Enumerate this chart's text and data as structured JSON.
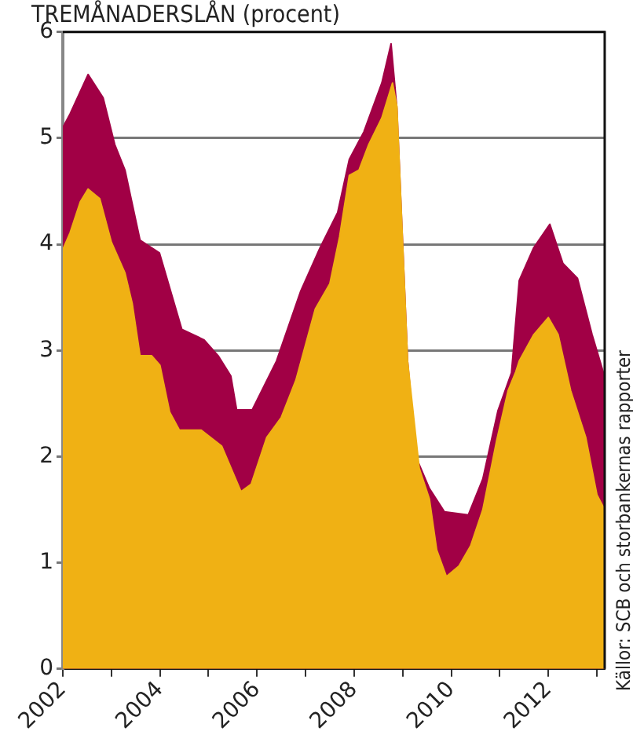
{
  "chart_data": {
    "type": "area",
    "title": "TREMÅNADERSLÅN (procent)",
    "annotations": [
      "Källor: SCB och storbankernas rapporter"
    ],
    "xlim": [
      2002,
      2013.16
    ],
    "xticks": [
      2002,
      {
        "value": 2003,
        "label": null
      },
      2004,
      {
        "value": 2005,
        "label": null
      },
      2006,
      {
        "value": 2007,
        "label": null
      },
      2008,
      {
        "value": 2009,
        "label": null
      },
      2010,
      {
        "value": 2011,
        "label": null
      },
      2012,
      {
        "value": 2013,
        "label": null
      }
    ],
    "ylim": [
      0,
      6
    ],
    "yticks": [
      0,
      1,
      2,
      3,
      4,
      5,
      6
    ],
    "grid": "y",
    "legend": false,
    "series": [
      {
        "color": "#a10045",
        "x": [
          2002,
          2002.15,
          2002.52,
          2002.83,
          2003.07,
          2003.28,
          2003.59,
          2003.99,
          2004.45,
          2004.91,
          2005.2,
          2005.46,
          2005.58,
          2005.9,
          2006.4,
          2006.9,
          2007.3,
          2007.66,
          2007.9,
          2008.2,
          2008.57,
          2008.76,
          2008.88,
          2009.1,
          2009.28,
          2009.55,
          2009.86,
          2010.35,
          2010.65,
          2010.96,
          2011.24,
          2011.4,
          2011.7,
          2012.03,
          2012.3,
          2012.6,
          2012.9,
          2013.16
        ],
        "values": [
          5.1,
          5.23,
          5.6,
          5.38,
          4.94,
          4.7,
          4.04,
          3.92,
          3.2,
          3.1,
          2.95,
          2.76,
          2.44,
          2.44,
          2.9,
          3.56,
          3.97,
          4.3,
          4.8,
          5.06,
          5.52,
          5.89,
          5.28,
          2.9,
          1.99,
          1.7,
          1.48,
          1.45,
          1.79,
          2.43,
          2.79,
          3.66,
          3.97,
          4.19,
          3.82,
          3.68,
          3.15,
          2.75
        ]
      },
      {
        "color": "#f0b114",
        "x": [
          2002,
          2002.15,
          2002.36,
          2002.52,
          2002.76,
          2003,
          2003.28,
          2003.43,
          2003.59,
          2003.83,
          2004,
          2004.2,
          2004.4,
          2004.85,
          2005.27,
          2005.67,
          2005.88,
          2006.2,
          2006.5,
          2006.8,
          2007.2,
          2007.5,
          2007.7,
          2007.9,
          2008.1,
          2008.3,
          2008.57,
          2008.79,
          2008.88,
          2009.1,
          2009.34,
          2009.55,
          2009.7,
          2009.9,
          2010.16,
          2010.4,
          2010.65,
          2010.93,
          2011.17,
          2011.33,
          2011.4,
          2011.7,
          2012,
          2012.2,
          2012.46,
          2012.77,
          2013,
          2013.16
        ],
        "values": [
          3.95,
          4.11,
          4.4,
          4.52,
          4.43,
          4.02,
          3.73,
          3.44,
          2.95,
          2.95,
          2.86,
          2.42,
          2.25,
          2.25,
          2.1,
          1.67,
          1.74,
          2.18,
          2.37,
          2.72,
          3.39,
          3.63,
          4.07,
          4.65,
          4.7,
          4.94,
          5.19,
          5.52,
          5.3,
          2.9,
          1.89,
          1.6,
          1.12,
          0.87,
          0.97,
          1.16,
          1.5,
          2.14,
          2.62,
          2.8,
          2.9,
          3.15,
          3.31,
          3.15,
          2.62,
          2.18,
          1.64,
          1.5
        ]
      }
    ]
  }
}
